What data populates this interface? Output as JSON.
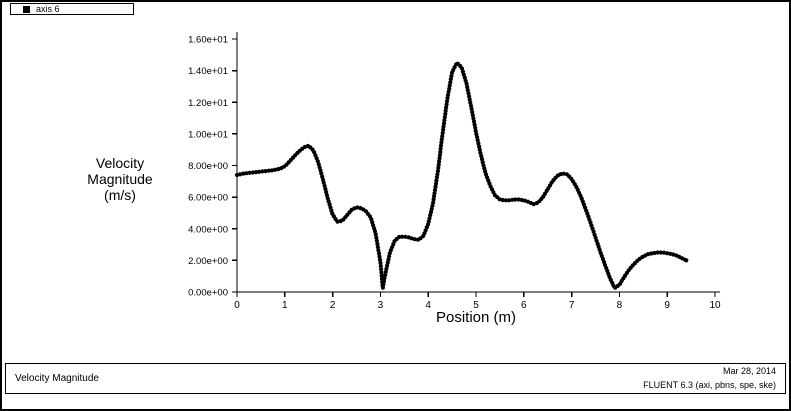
{
  "page": {
    "background": "#ffffff",
    "border_color": "#000000"
  },
  "legend": {
    "series_label": "axis 6",
    "marker_color": "#000000"
  },
  "footer": {
    "title": "Velocity Magnitude",
    "date": "Mar 28, 2014",
    "app_info": "FLUENT 6.3 (axi, pbns, spe, ske)"
  },
  "chart_data": {
    "type": "line",
    "title": "",
    "xlabel": "Position (m)",
    "ylabel": "Velocity Magnitude (m/s)",
    "ylabel_lines": [
      "Velocity",
      "Magnitude",
      "(m/s)"
    ],
    "xlim": [
      0,
      10
    ],
    "ylim": [
      0,
      16
    ],
    "grid": false,
    "legend_position": "top-left",
    "marker": "filled-circle",
    "line_color": "#000000",
    "x_ticks": [
      0,
      1,
      2,
      3,
      4,
      5,
      6,
      7,
      8,
      9,
      10
    ],
    "x_tick_labels": [
      "0",
      "1",
      "2",
      "3",
      "4",
      "5",
      "6",
      "7",
      "8",
      "9",
      "10"
    ],
    "y_ticks": [
      0,
      2,
      4,
      6,
      8,
      10,
      12,
      14,
      16
    ],
    "y_tick_labels": [
      "0.00e+00",
      "2.00e+00",
      "4.00e+00",
      "6.00e+00",
      "8.00e+00",
      "1.00e+01",
      "1.20e+01",
      "1.40e+01",
      "1.60e+01"
    ],
    "series": [
      {
        "name": "axis 6",
        "points": [
          [
            0.0,
            7.4
          ],
          [
            0.15,
            7.5
          ],
          [
            0.3,
            7.55
          ],
          [
            0.45,
            7.6
          ],
          [
            0.6,
            7.65
          ],
          [
            0.75,
            7.7
          ],
          [
            0.9,
            7.8
          ],
          [
            1.0,
            7.95
          ],
          [
            1.1,
            8.25
          ],
          [
            1.2,
            8.6
          ],
          [
            1.3,
            8.9
          ],
          [
            1.4,
            9.15
          ],
          [
            1.5,
            9.25
          ],
          [
            1.6,
            8.95
          ],
          [
            1.7,
            8.2
          ],
          [
            1.8,
            7.1
          ],
          [
            1.9,
            5.9
          ],
          [
            2.0,
            4.9
          ],
          [
            2.1,
            4.45
          ],
          [
            2.2,
            4.5
          ],
          [
            2.3,
            4.85
          ],
          [
            2.4,
            5.2
          ],
          [
            2.5,
            5.35
          ],
          [
            2.6,
            5.3
          ],
          [
            2.7,
            5.1
          ],
          [
            2.8,
            4.7
          ],
          [
            2.9,
            3.7
          ],
          [
            3.0,
            1.9
          ],
          [
            3.05,
            0.25
          ],
          [
            3.1,
            1.1
          ],
          [
            3.2,
            2.5
          ],
          [
            3.3,
            3.25
          ],
          [
            3.4,
            3.5
          ],
          [
            3.5,
            3.5
          ],
          [
            3.6,
            3.45
          ],
          [
            3.7,
            3.35
          ],
          [
            3.8,
            3.3
          ],
          [
            3.9,
            3.55
          ],
          [
            4.0,
            4.3
          ],
          [
            4.1,
            5.6
          ],
          [
            4.2,
            7.6
          ],
          [
            4.3,
            10.0
          ],
          [
            4.4,
            12.2
          ],
          [
            4.5,
            13.9
          ],
          [
            4.6,
            14.5
          ],
          [
            4.7,
            14.2
          ],
          [
            4.8,
            13.2
          ],
          [
            4.9,
            11.7
          ],
          [
            5.0,
            10.1
          ],
          [
            5.1,
            8.7
          ],
          [
            5.2,
            7.5
          ],
          [
            5.3,
            6.7
          ],
          [
            5.4,
            6.1
          ],
          [
            5.5,
            5.85
          ],
          [
            5.6,
            5.8
          ],
          [
            5.7,
            5.8
          ],
          [
            5.8,
            5.85
          ],
          [
            5.9,
            5.85
          ],
          [
            6.0,
            5.8
          ],
          [
            6.1,
            5.7
          ],
          [
            6.2,
            5.55
          ],
          [
            6.3,
            5.65
          ],
          [
            6.4,
            6.0
          ],
          [
            6.5,
            6.5
          ],
          [
            6.6,
            7.0
          ],
          [
            6.7,
            7.35
          ],
          [
            6.8,
            7.5
          ],
          [
            6.9,
            7.45
          ],
          [
            7.0,
            7.15
          ],
          [
            7.1,
            6.65
          ],
          [
            7.2,
            6.0
          ],
          [
            7.3,
            5.2
          ],
          [
            7.4,
            4.35
          ],
          [
            7.5,
            3.45
          ],
          [
            7.6,
            2.55
          ],
          [
            7.7,
            1.7
          ],
          [
            7.8,
            0.9
          ],
          [
            7.9,
            0.25
          ],
          [
            8.0,
            0.45
          ],
          [
            8.1,
            0.95
          ],
          [
            8.2,
            1.4
          ],
          [
            8.3,
            1.75
          ],
          [
            8.4,
            2.05
          ],
          [
            8.5,
            2.25
          ],
          [
            8.6,
            2.4
          ],
          [
            8.7,
            2.45
          ],
          [
            8.8,
            2.5
          ],
          [
            8.9,
            2.5
          ],
          [
            9.0,
            2.45
          ],
          [
            9.1,
            2.4
          ],
          [
            9.2,
            2.3
          ],
          [
            9.3,
            2.15
          ],
          [
            9.4,
            2.0
          ]
        ]
      }
    ]
  }
}
